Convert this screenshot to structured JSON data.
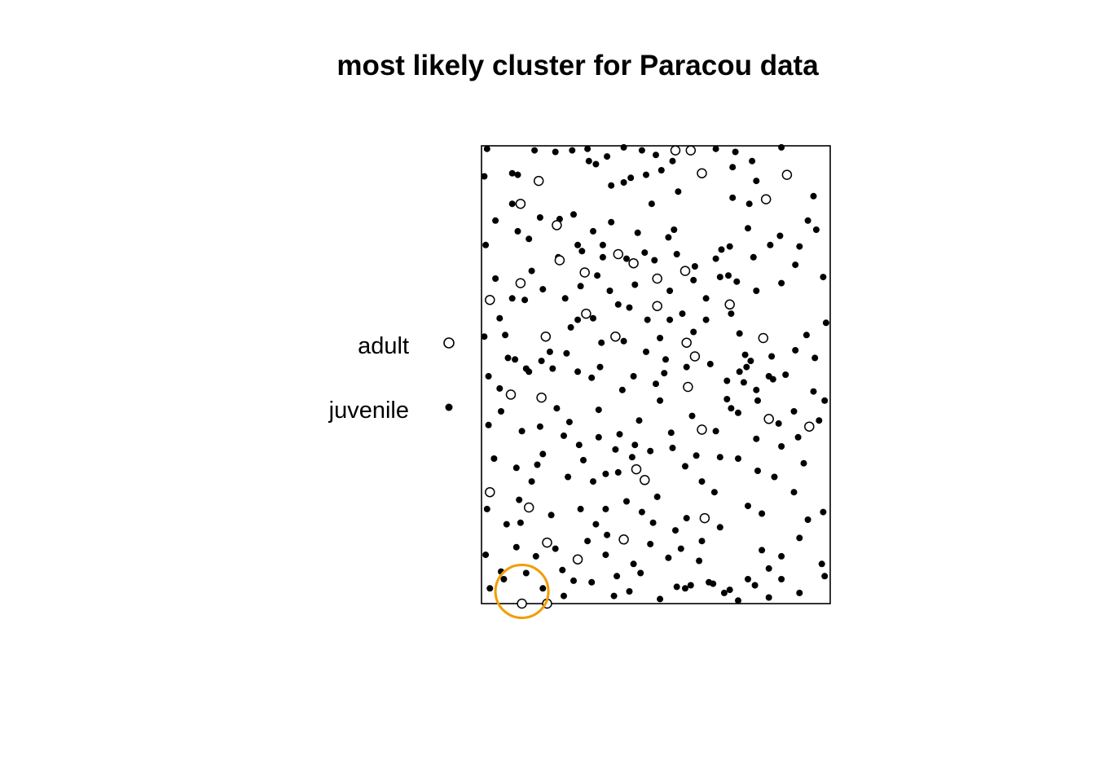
{
  "chart_data": {
    "type": "scatter",
    "title": "most likely cluster for Paracou data",
    "xlabel": "",
    "ylabel": "",
    "axes_shown": false,
    "window": {
      "x": [
        0,
        250
      ],
      "y": [
        0,
        300
      ]
    },
    "legend": {
      "placement": "left",
      "entries": [
        {
          "label": "adult",
          "marker": "open-circle"
        },
        {
          "label": "juvenile",
          "marker": "filled-circle"
        }
      ]
    },
    "cluster": {
      "center_x": 29,
      "center_y": 8,
      "radius": 19,
      "color": "#f29d00"
    },
    "series": [
      {
        "name": "adult",
        "marker": "open-circle",
        "points": [
          [
            41,
            277
          ],
          [
            139,
            297
          ],
          [
            150,
            297
          ],
          [
            158,
            282
          ],
          [
            219,
            281
          ],
          [
            204,
            265
          ],
          [
            28,
            262
          ],
          [
            54,
            248
          ],
          [
            28,
            210
          ],
          [
            56,
            225
          ],
          [
            98,
            229
          ],
          [
            109,
            223
          ],
          [
            146,
            218
          ],
          [
            126,
            213
          ],
          [
            6,
            199
          ],
          [
            74,
            217
          ],
          [
            126,
            195
          ],
          [
            75,
            190
          ],
          [
            178,
            196
          ],
          [
            202,
            174
          ],
          [
            46,
            175
          ],
          [
            96,
            175
          ],
          [
            147,
            171
          ],
          [
            153,
            162
          ],
          [
            43,
            135
          ],
          [
            21,
            137
          ],
          [
            148,
            142
          ],
          [
            206,
            121
          ],
          [
            235,
            116
          ],
          [
            158,
            114
          ],
          [
            111,
            88
          ],
          [
            117,
            81
          ],
          [
            6,
            73
          ],
          [
            34,
            63
          ],
          [
            160,
            56
          ],
          [
            47,
            40
          ],
          [
            102,
            42
          ],
          [
            69,
            29
          ],
          [
            29,
            0
          ],
          [
            47,
            0
          ]
        ]
      },
      {
        "name": "juvenile",
        "marker": "filled-circle",
        "points": [
          [
            4,
            298
          ],
          [
            38,
            297
          ],
          [
            53,
            296
          ],
          [
            65,
            297
          ],
          [
            76,
            298
          ],
          [
            102,
            299
          ],
          [
            115,
            297
          ],
          [
            125,
            294
          ],
          [
            168,
            298
          ],
          [
            182,
            296
          ],
          [
            194,
            290
          ],
          [
            215,
            299
          ],
          [
            2,
            280
          ],
          [
            22,
            282
          ],
          [
            26,
            281
          ],
          [
            77,
            290
          ],
          [
            82,
            288
          ],
          [
            90,
            293
          ],
          [
            102,
            276
          ],
          [
            107,
            279
          ],
          [
            118,
            281
          ],
          [
            129,
            284
          ],
          [
            137,
            290
          ],
          [
            180,
            286
          ],
          [
            197,
            277
          ],
          [
            238,
            267
          ],
          [
            10,
            251
          ],
          [
            22,
            262
          ],
          [
            42,
            253
          ],
          [
            56,
            252
          ],
          [
            66,
            255
          ],
          [
            80,
            244
          ],
          [
            93,
            250
          ],
          [
            112,
            243
          ],
          [
            141,
            270
          ],
          [
            180,
            266
          ],
          [
            191,
            246
          ],
          [
            214,
            241
          ],
          [
            234,
            251
          ],
          [
            3,
            235
          ],
          [
            26,
            244
          ],
          [
            34,
            239
          ],
          [
            55,
            227
          ],
          [
            72,
            231
          ],
          [
            87,
            235
          ],
          [
            104,
            226
          ],
          [
            117,
            230
          ],
          [
            124,
            225
          ],
          [
            140,
            229
          ],
          [
            153,
            221
          ],
          [
            168,
            226
          ],
          [
            178,
            234
          ],
          [
            183,
            211
          ],
          [
            195,
            227
          ],
          [
            207,
            235
          ],
          [
            228,
            234
          ],
          [
            240,
            245
          ],
          [
            10,
            213
          ],
          [
            22,
            200
          ],
          [
            36,
            218
          ],
          [
            44,
            206
          ],
          [
            60,
            200
          ],
          [
            71,
            208
          ],
          [
            83,
            215
          ],
          [
            92,
            205
          ],
          [
            98,
            196
          ],
          [
            110,
            209
          ],
          [
            119,
            186
          ],
          [
            135,
            205
          ],
          [
            144,
            190
          ],
          [
            161,
            200
          ],
          [
            171,
            214
          ],
          [
            177,
            215
          ],
          [
            197,
            205
          ],
          [
            215,
            210
          ],
          [
            225,
            222
          ],
          [
            245,
            214
          ],
          [
            2,
            175
          ],
          [
            13,
            187
          ],
          [
            19,
            161
          ],
          [
            34,
            152
          ],
          [
            49,
            165
          ],
          [
            64,
            181
          ],
          [
            80,
            187
          ],
          [
            86,
            171
          ],
          [
            102,
            172
          ],
          [
            118,
            165
          ],
          [
            128,
            174
          ],
          [
            135,
            186
          ],
          [
            161,
            186
          ],
          [
            185,
            177
          ],
          [
            193,
            159
          ],
          [
            206,
            149
          ],
          [
            233,
            176
          ],
          [
            247,
            184
          ],
          [
            5,
            149
          ],
          [
            24,
            160
          ],
          [
            32,
            154
          ],
          [
            43,
            159
          ],
          [
            51,
            154
          ],
          [
            61,
            164
          ],
          [
            69,
            152
          ],
          [
            79,
            148
          ],
          [
            85,
            155
          ],
          [
            101,
            140
          ],
          [
            109,
            149
          ],
          [
            125,
            144
          ],
          [
            131,
            151
          ],
          [
            147,
            155
          ],
          [
            164,
            157
          ],
          [
            176,
            146
          ],
          [
            190,
            155
          ],
          [
            197,
            140
          ],
          [
            209,
            147
          ],
          [
            225,
            166
          ],
          [
            239,
            161
          ],
          [
            5,
            117
          ],
          [
            14,
            126
          ],
          [
            29,
            113
          ],
          [
            42,
            116
          ],
          [
            54,
            128
          ],
          [
            63,
            119
          ],
          [
            70,
            104
          ],
          [
            84,
            109
          ],
          [
            96,
            101
          ],
          [
            108,
            96
          ],
          [
            121,
            100
          ],
          [
            136,
            112
          ],
          [
            151,
            123
          ],
          [
            168,
            113
          ],
          [
            179,
            128
          ],
          [
            184,
            125
          ],
          [
            188,
            145
          ],
          [
            198,
            133
          ],
          [
            213,
            118
          ],
          [
            224,
            126
          ],
          [
            238,
            139
          ],
          [
            9,
            95
          ],
          [
            25,
            89
          ],
          [
            36,
            80
          ],
          [
            44,
            98
          ],
          [
            62,
            83
          ],
          [
            73,
            94
          ],
          [
            80,
            80
          ],
          [
            89,
            85
          ],
          [
            98,
            86
          ],
          [
            110,
            104
          ],
          [
            137,
            102
          ],
          [
            146,
            90
          ],
          [
            158,
            80
          ],
          [
            171,
            96
          ],
          [
            184,
            95
          ],
          [
            197,
            108
          ],
          [
            215,
            103
          ],
          [
            227,
            109
          ],
          [
            246,
            133
          ],
          [
            4,
            62
          ],
          [
            18,
            52
          ],
          [
            27,
            68
          ],
          [
            50,
            58
          ],
          [
            71,
            62
          ],
          [
            82,
            52
          ],
          [
            89,
            62
          ],
          [
            104,
            67
          ],
          [
            115,
            60
          ],
          [
            126,
            70
          ],
          [
            139,
            48
          ],
          [
            147,
            56
          ],
          [
            158,
            41
          ],
          [
            171,
            50
          ],
          [
            191,
            64
          ],
          [
            201,
            59
          ],
          [
            224,
            73
          ],
          [
            234,
            55
          ],
          [
            245,
            60
          ],
          [
            3,
            32
          ],
          [
            14,
            21
          ],
          [
            25,
            37
          ],
          [
            39,
            31
          ],
          [
            53,
            36
          ],
          [
            66,
            15
          ],
          [
            76,
            41
          ],
          [
            89,
            32
          ],
          [
            97,
            18
          ],
          [
            109,
            26
          ],
          [
            121,
            39
          ],
          [
            134,
            30
          ],
          [
            146,
            10
          ],
          [
            156,
            28
          ],
          [
            166,
            13
          ],
          [
            178,
            9
          ],
          [
            191,
            16
          ],
          [
            201,
            35
          ],
          [
            215,
            31
          ],
          [
            228,
            43
          ],
          [
            244,
            26
          ],
          [
            6,
            10
          ],
          [
            16,
            16
          ],
          [
            32,
            20
          ],
          [
            44,
            10
          ],
          [
            59,
            5
          ],
          [
            79,
            14
          ],
          [
            95,
            5
          ],
          [
            106,
            8
          ],
          [
            114,
            20
          ],
          [
            128,
            3
          ],
          [
            140,
            11
          ],
          [
            150,
            12
          ],
          [
            163,
            14
          ],
          [
            174,
            7
          ],
          [
            184,
            2
          ],
          [
            196,
            12
          ],
          [
            206,
            4
          ],
          [
            215,
            16
          ],
          [
            228,
            7
          ],
          [
            246,
            18
          ],
          [
            93,
            274
          ],
          [
            122,
            262
          ],
          [
            138,
            245
          ],
          [
            192,
            262
          ],
          [
            31,
            199
          ],
          [
            69,
            186
          ],
          [
            152,
            178
          ],
          [
            185,
            152
          ],
          [
            208,
            162
          ],
          [
            13,
            141
          ],
          [
            128,
            133
          ],
          [
            176,
            134
          ],
          [
            218,
            150
          ],
          [
            59,
            110
          ],
          [
            99,
            111
          ],
          [
            167,
            73
          ],
          [
            210,
            83
          ],
          [
            28,
            53
          ],
          [
            90,
            45
          ],
          [
            143,
            36
          ],
          [
            231,
            92
          ],
          [
            198,
            87
          ],
          [
            113,
            120
          ],
          [
            154,
            97
          ],
          [
            69,
            235
          ],
          [
            87,
            227
          ],
          [
            152,
            212
          ],
          [
            172,
            232
          ],
          [
            106,
            194
          ],
          [
            132,
            160
          ],
          [
            189,
            163
          ],
          [
            17,
            176
          ],
          [
            242,
            120
          ],
          [
            40,
            91
          ],
          [
            123,
            53
          ],
          [
            58,
            22
          ],
          [
            206,
            23
          ],
          [
            179,
            190
          ],
          [
            134,
            240
          ],
          [
            84,
            127
          ]
        ]
      }
    ]
  }
}
